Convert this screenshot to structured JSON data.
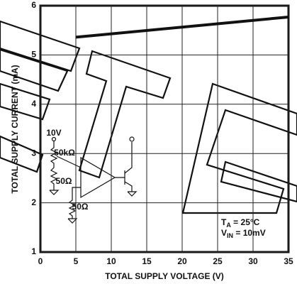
{
  "chart_data": {
    "type": "line",
    "x_label": "TOTAL SUPPLY VOLTAGE (V)",
    "y_label": "TOTAL SUPPLY CURRENT (mA)",
    "xlim": [
      0,
      35
    ],
    "ylim": [
      1,
      6
    ],
    "xticks": [
      0,
      5,
      10,
      15,
      20,
      25,
      30,
      35
    ],
    "yticks": [
      1,
      2,
      3,
      4,
      5,
      6
    ],
    "grid": true,
    "series": [
      {
        "color": "#111111",
        "x": [
          5,
          35
        ],
        "values": [
          5.36,
          5.77
        ]
      }
    ],
    "annotations": [
      {
        "main": "T",
        "sub": "A",
        "rest": " = 25°C"
      },
      {
        "main": "V",
        "sub": "IN",
        "rest": " = 10mV"
      }
    ],
    "circuit_labels": [
      "10V",
      "50kΩ",
      "50Ω",
      "50Ω"
    ]
  }
}
